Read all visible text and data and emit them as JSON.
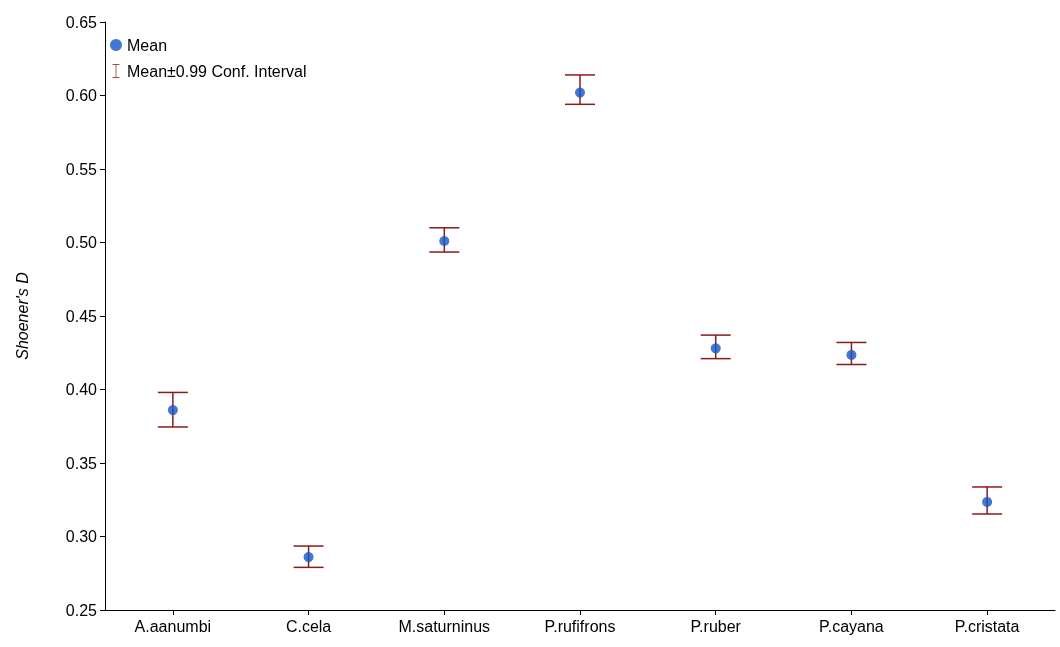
{
  "chart_data": {
    "type": "scatter",
    "ylabel": "Shoener's D",
    "categories": [
      "A.aanumbi",
      "C.cela",
      "M.saturninus",
      "P.rufifrons",
      "P.ruber",
      "P.cayana",
      "P.cristata"
    ],
    "series": [
      {
        "name": "Mean",
        "color": "#1356c6",
        "values": [
          0.386,
          0.286,
          0.501,
          0.602,
          0.428,
          0.4235,
          0.3235
        ],
        "errors": [
          [
            0.3745,
            0.398
          ],
          [
            0.279,
            0.2935
          ],
          [
            0.4935,
            0.51
          ],
          [
            0.594,
            0.614
          ],
          [
            0.421,
            0.437
          ],
          [
            0.417,
            0.432
          ],
          [
            0.3153,
            0.3337
          ]
        ]
      }
    ],
    "annotations": [
      "Mean±0.99 Conf. Interval"
    ],
    "ylim": [
      0.25,
      0.65
    ],
    "yticks": [
      {
        "value": 0.25,
        "label": "0.25"
      },
      {
        "value": 0.3,
        "label": "0.30"
      },
      {
        "value": 0.35,
        "label": "0.35"
      },
      {
        "value": 0.4,
        "label": "0.40"
      },
      {
        "value": 0.45,
        "label": "0.45"
      },
      {
        "value": 0.5,
        "label": "0.50"
      },
      {
        "value": 0.55,
        "label": "0.55"
      },
      {
        "value": 0.6,
        "label": "0.60"
      },
      {
        "value": 0.65,
        "label": "0.65"
      }
    ],
    "legend": "top left",
    "marker": "circle",
    "grid": false
  }
}
